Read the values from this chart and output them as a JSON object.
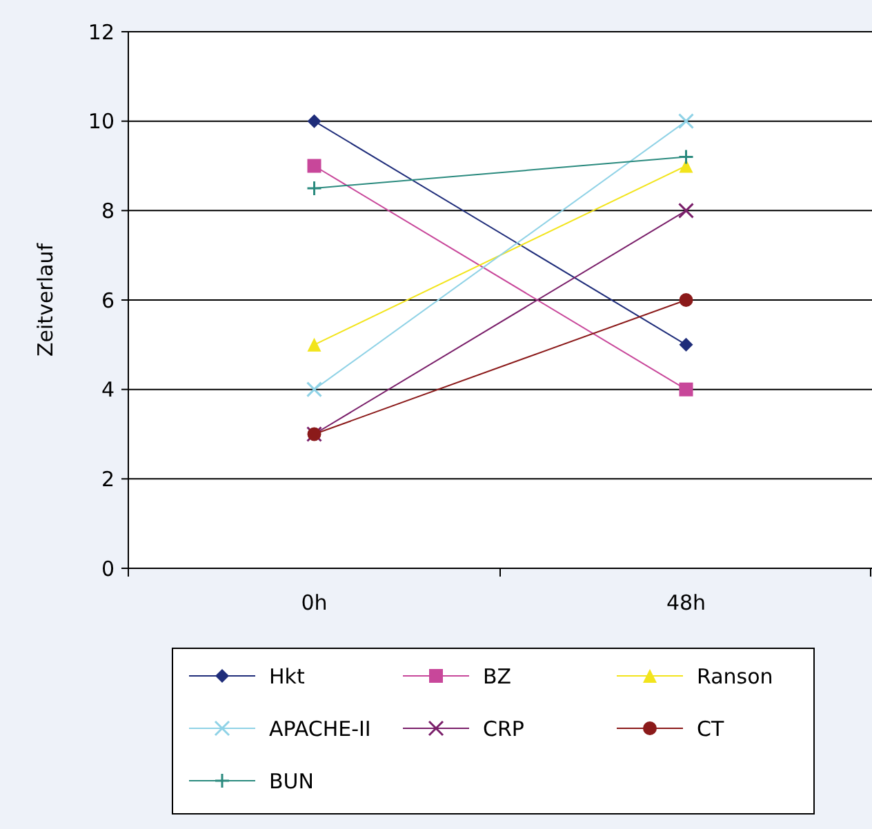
{
  "chart_data": {
    "type": "line",
    "ylabel": "Zeitverlauf",
    "categories": [
      "0h",
      "48h"
    ],
    "ylim": [
      0,
      12
    ],
    "yticks": [
      0,
      2,
      4,
      6,
      8,
      10,
      12
    ],
    "grid": "y",
    "legend": "bottom",
    "series": [
      {
        "name": "Hkt",
        "color": "#1f2d7a",
        "marker": "diamond",
        "values": [
          10,
          5
        ]
      },
      {
        "name": "BZ",
        "color": "#c8479a",
        "marker": "square",
        "values": [
          9,
          4
        ]
      },
      {
        "name": "Ranson",
        "color": "#f2e41c",
        "marker": "triangle",
        "values": [
          5,
          9
        ]
      },
      {
        "name": "APACHE-II",
        "color": "#8fd2e6",
        "marker": "cross",
        "values": [
          4,
          10
        ]
      },
      {
        "name": "CRP",
        "color": "#7a1f6a",
        "marker": "cross",
        "values": [
          3,
          8
        ]
      },
      {
        "name": "CT",
        "color": "#8b1a1a",
        "marker": "circle",
        "values": [
          3,
          6
        ]
      },
      {
        "name": "BUN",
        "color": "#2a8a7e",
        "marker": "plus",
        "values": [
          8.5,
          9.2
        ]
      }
    ]
  }
}
